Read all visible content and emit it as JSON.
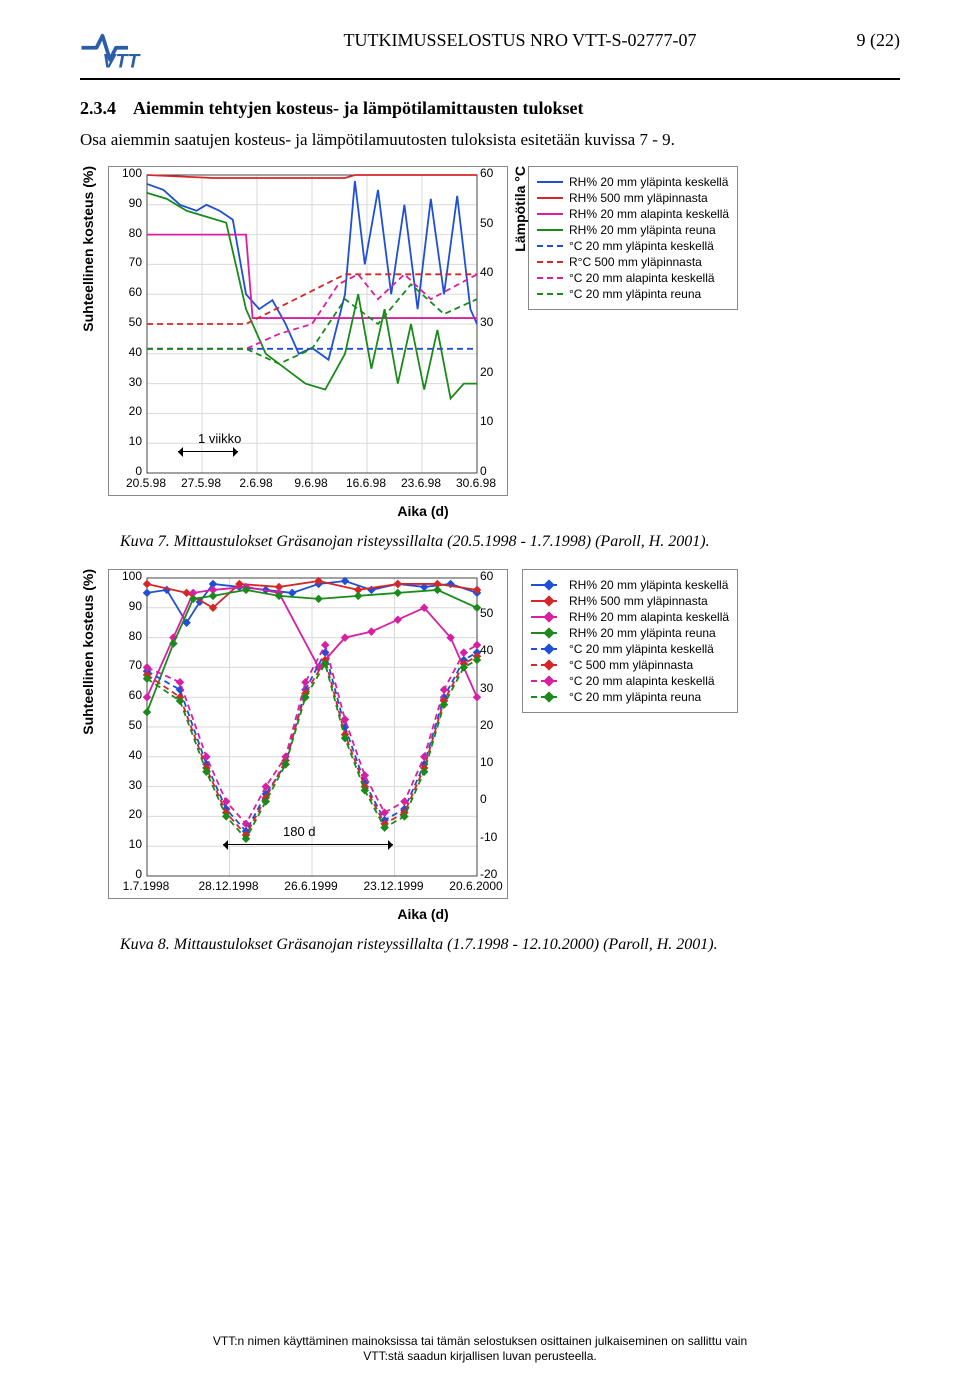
{
  "header": {
    "doc_title": "TUTKIMUSSELOSTUS NRO VTT-S-02777-07",
    "page_num": "9 (22)",
    "logo_text": "VTT",
    "logo_color": "#2a5fa8"
  },
  "section": {
    "number": "2.3.4",
    "title": "Aiemmin tehtyjen kosteus- ja lämpötilamittausten tulokset",
    "body": "Osa aiemmin saatujen kosteus- ja lämpötilamuutosten tuloksista esitetään kuvissa 7 - 9."
  },
  "chart1": {
    "type": "line",
    "ylabel_left": "Suhteellinen kosteus (%)",
    "ylabel_right": "Lämpötila °C",
    "xlabel": "Aika (d)",
    "xlim_labels": [
      "20.5.98",
      "27.5.98",
      "2.6.98",
      "9.6.98",
      "16.6.98",
      "23.6.98",
      "30.6.98"
    ],
    "y_left_ticks": [
      0,
      10,
      20,
      30,
      40,
      50,
      60,
      70,
      80,
      90,
      100
    ],
    "y_right_ticks": [
      0,
      10,
      20,
      30,
      40,
      50,
      60
    ],
    "annot": "1 viikko",
    "background_color": "#ffffff",
    "grid_color": "#d9d9d9",
    "legend": [
      {
        "label": "RH% 20 mm yläpinta keskellä",
        "color": "#1f4fd6",
        "dash": false
      },
      {
        "label": "RH% 500 mm yläpinnasta",
        "color": "#d62728",
        "dash": false
      },
      {
        "label": "RH% 20 mm alapinta keskellä",
        "color": "#d81fa3",
        "dash": false
      },
      {
        "label": "RH% 20 mm yläpinta reuna",
        "color": "#1a8a1a",
        "dash": false
      },
      {
        "label": "°C 20 mm yläpinta keskellä",
        "color": "#1f4fd6",
        "dash": true
      },
      {
        "label": "R°C  500 mm yläpinnasta",
        "color": "#d62728",
        "dash": true
      },
      {
        "label": "°C 20 mm alapinta keskellä",
        "color": "#d81fa3",
        "dash": true
      },
      {
        "label": "°C 20 mm yläpinta reuna",
        "color": "#1a8a1a",
        "dash": true
      }
    ],
    "series": {
      "rh_blue": [
        [
          0,
          97
        ],
        [
          5,
          95
        ],
        [
          10,
          90
        ],
        [
          15,
          88
        ],
        [
          18,
          90
        ],
        [
          22,
          88
        ],
        [
          26,
          85
        ],
        [
          30,
          60
        ],
        [
          34,
          55
        ],
        [
          38,
          58
        ],
        [
          42,
          50
        ],
        [
          46,
          40
        ],
        [
          50,
          42
        ],
        [
          55,
          38
        ],
        [
          60,
          60
        ],
        [
          63,
          98
        ],
        [
          66,
          70
        ],
        [
          70,
          95
        ],
        [
          74,
          60
        ],
        [
          78,
          90
        ],
        [
          82,
          55
        ],
        [
          86,
          92
        ],
        [
          90,
          60
        ],
        [
          94,
          93
        ],
        [
          98,
          55
        ],
        [
          100,
          50
        ]
      ],
      "rh_red": [
        [
          0,
          100
        ],
        [
          20,
          99
        ],
        [
          40,
          99
        ],
        [
          60,
          99
        ],
        [
          63,
          100
        ],
        [
          100,
          100
        ]
      ],
      "rh_pink": [
        [
          0,
          80
        ],
        [
          30,
          80
        ],
        [
          32,
          52
        ],
        [
          100,
          52
        ]
      ],
      "rh_green": [
        [
          0,
          94
        ],
        [
          6,
          92
        ],
        [
          12,
          88
        ],
        [
          18,
          86
        ],
        [
          24,
          84
        ],
        [
          30,
          55
        ],
        [
          36,
          40
        ],
        [
          42,
          35
        ],
        [
          48,
          30
        ],
        [
          54,
          28
        ],
        [
          60,
          40
        ],
        [
          64,
          60
        ],
        [
          68,
          35
        ],
        [
          72,
          55
        ],
        [
          76,
          30
        ],
        [
          80,
          50
        ],
        [
          84,
          28
        ],
        [
          88,
          48
        ],
        [
          92,
          25
        ],
        [
          96,
          30
        ],
        [
          100,
          30
        ]
      ],
      "t_blue": [
        [
          0,
          25
        ],
        [
          100,
          25
        ]
      ],
      "t_red": [
        [
          0,
          30
        ],
        [
          30,
          30
        ],
        [
          60,
          40
        ],
        [
          100,
          40
        ]
      ],
      "t_pink": [
        [
          0,
          25
        ],
        [
          30,
          25
        ],
        [
          40,
          28
        ],
        [
          50,
          30
        ],
        [
          58,
          38
        ],
        [
          64,
          40
        ],
        [
          70,
          35
        ],
        [
          78,
          40
        ],
        [
          86,
          35
        ],
        [
          100,
          40
        ]
      ],
      "t_green": [
        [
          0,
          25
        ],
        [
          30,
          25
        ],
        [
          40,
          22
        ],
        [
          50,
          25
        ],
        [
          60,
          35
        ],
        [
          70,
          30
        ],
        [
          80,
          38
        ],
        [
          90,
          32
        ],
        [
          100,
          35
        ]
      ]
    }
  },
  "caption1": "Kuva 7. Mittaustulokset Gräsanojan risteyssillalta (20.5.1998 - 1.7.1998) (Paroll, H. 2001).",
  "chart2": {
    "type": "line",
    "ylabel_left": "Suhteellinen kosteus (%)",
    "xlabel": "Aika (d)",
    "xlim_labels": [
      "1.7.1998",
      "28.12.1998",
      "26.6.1999",
      "23.12.1999",
      "20.6.2000"
    ],
    "y_left_ticks": [
      0,
      10,
      20,
      30,
      40,
      50,
      60,
      70,
      80,
      90,
      100
    ],
    "y_right_ticks": [
      -20,
      -10,
      0,
      10,
      20,
      30,
      40,
      50,
      60
    ],
    "annot": "180 d",
    "background_color": "#ffffff",
    "grid_color": "#d9d9d9",
    "legend": [
      {
        "label": "RH% 20 mm yläpinta keskellä",
        "color": "#1f4fd6",
        "marker": true
      },
      {
        "label": "RH% 500 mm yläpinnasta",
        "color": "#d62728",
        "marker": true
      },
      {
        "label": "RH% 20 mm alapinta keskellä",
        "color": "#d81fa3",
        "marker": true
      },
      {
        "label": "RH% 20 mm yläpinta reuna",
        "color": "#1a8a1a",
        "marker": true
      },
      {
        "label": "°C 20 mm yläpinta keskellä",
        "color": "#1f4fd6",
        "marker": true,
        "dash": true
      },
      {
        "label": "°C  500 mm yläpinnasta",
        "color": "#d62728",
        "marker": true,
        "dash": true
      },
      {
        "label": "°C 20 mm alapinta keskellä",
        "color": "#d81fa3",
        "marker": true,
        "dash": true
      },
      {
        "label": "°C 20 mm yläpinta reuna",
        "color": "#1a8a1a",
        "marker": true,
        "dash": true
      }
    ],
    "series": {
      "rh_blue": [
        [
          0,
          95
        ],
        [
          6,
          96
        ],
        [
          12,
          85
        ],
        [
          16,
          92
        ],
        [
          20,
          98
        ],
        [
          28,
          97
        ],
        [
          36,
          96
        ],
        [
          44,
          95
        ],
        [
          52,
          98
        ],
        [
          60,
          99
        ],
        [
          68,
          96
        ],
        [
          76,
          98
        ],
        [
          84,
          97
        ],
        [
          92,
          98
        ],
        [
          100,
          95
        ]
      ],
      "rh_red": [
        [
          0,
          98
        ],
        [
          12,
          95
        ],
        [
          20,
          90
        ],
        [
          28,
          98
        ],
        [
          40,
          97
        ],
        [
          52,
          99
        ],
        [
          64,
          96
        ],
        [
          76,
          98
        ],
        [
          88,
          98
        ],
        [
          100,
          96
        ]
      ],
      "rh_pink": [
        [
          0,
          60
        ],
        [
          8,
          80
        ],
        [
          14,
          95
        ],
        [
          20,
          96
        ],
        [
          30,
          97
        ],
        [
          40,
          95
        ],
        [
          52,
          70
        ],
        [
          60,
          80
        ],
        [
          68,
          82
        ],
        [
          76,
          86
        ],
        [
          84,
          90
        ],
        [
          92,
          80
        ],
        [
          100,
          60
        ]
      ],
      "rh_green": [
        [
          0,
          55
        ],
        [
          8,
          78
        ],
        [
          14,
          93
        ],
        [
          20,
          94
        ],
        [
          30,
          96
        ],
        [
          40,
          94
        ],
        [
          52,
          93
        ],
        [
          64,
          94
        ],
        [
          76,
          95
        ],
        [
          88,
          96
        ],
        [
          100,
          90
        ]
      ],
      "t_blue": [
        [
          0,
          35
        ],
        [
          10,
          30
        ],
        [
          18,
          10
        ],
        [
          24,
          -2
        ],
        [
          30,
          -8
        ],
        [
          36,
          2
        ],
        [
          42,
          10
        ],
        [
          48,
          30
        ],
        [
          54,
          40
        ],
        [
          60,
          20
        ],
        [
          66,
          5
        ],
        [
          72,
          -5
        ],
        [
          78,
          -2
        ],
        [
          84,
          10
        ],
        [
          90,
          28
        ],
        [
          96,
          38
        ],
        [
          100,
          40
        ]
      ],
      "t_red": [
        [
          0,
          34
        ],
        [
          10,
          28
        ],
        [
          18,
          9
        ],
        [
          24,
          -3
        ],
        [
          30,
          -9
        ],
        [
          36,
          1
        ],
        [
          42,
          11
        ],
        [
          48,
          29
        ],
        [
          54,
          38
        ],
        [
          60,
          18
        ],
        [
          66,
          4
        ],
        [
          72,
          -6
        ],
        [
          78,
          -3
        ],
        [
          84,
          9
        ],
        [
          90,
          27
        ],
        [
          96,
          37
        ],
        [
          100,
          39
        ]
      ],
      "t_pink": [
        [
          0,
          36
        ],
        [
          10,
          32
        ],
        [
          18,
          12
        ],
        [
          24,
          0
        ],
        [
          30,
          -6
        ],
        [
          36,
          4
        ],
        [
          42,
          12
        ],
        [
          48,
          32
        ],
        [
          54,
          42
        ],
        [
          60,
          22
        ],
        [
          66,
          7
        ],
        [
          72,
          -3
        ],
        [
          78,
          0
        ],
        [
          84,
          12
        ],
        [
          90,
          30
        ],
        [
          96,
          40
        ],
        [
          100,
          42
        ]
      ],
      "t_green": [
        [
          0,
          33
        ],
        [
          10,
          27
        ],
        [
          18,
          8
        ],
        [
          24,
          -4
        ],
        [
          30,
          -10
        ],
        [
          36,
          0
        ],
        [
          42,
          10
        ],
        [
          48,
          28
        ],
        [
          54,
          37
        ],
        [
          60,
          17
        ],
        [
          66,
          3
        ],
        [
          72,
          -7
        ],
        [
          78,
          -4
        ],
        [
          84,
          8
        ],
        [
          90,
          26
        ],
        [
          96,
          36
        ],
        [
          100,
          38
        ]
      ]
    }
  },
  "caption2": "Kuva 8. Mittaustulokset Gräsanojan risteyssillalta (1.7.1998 - 12.10.2000) (Paroll, H. 2001).",
  "footer": {
    "line1": "VTT:n nimen käyttäminen mainoksissa tai tämän selostuksen osittainen julkaiseminen on sallittu vain",
    "line2": "VTT:stä saadun kirjallisen luvan perusteella."
  }
}
